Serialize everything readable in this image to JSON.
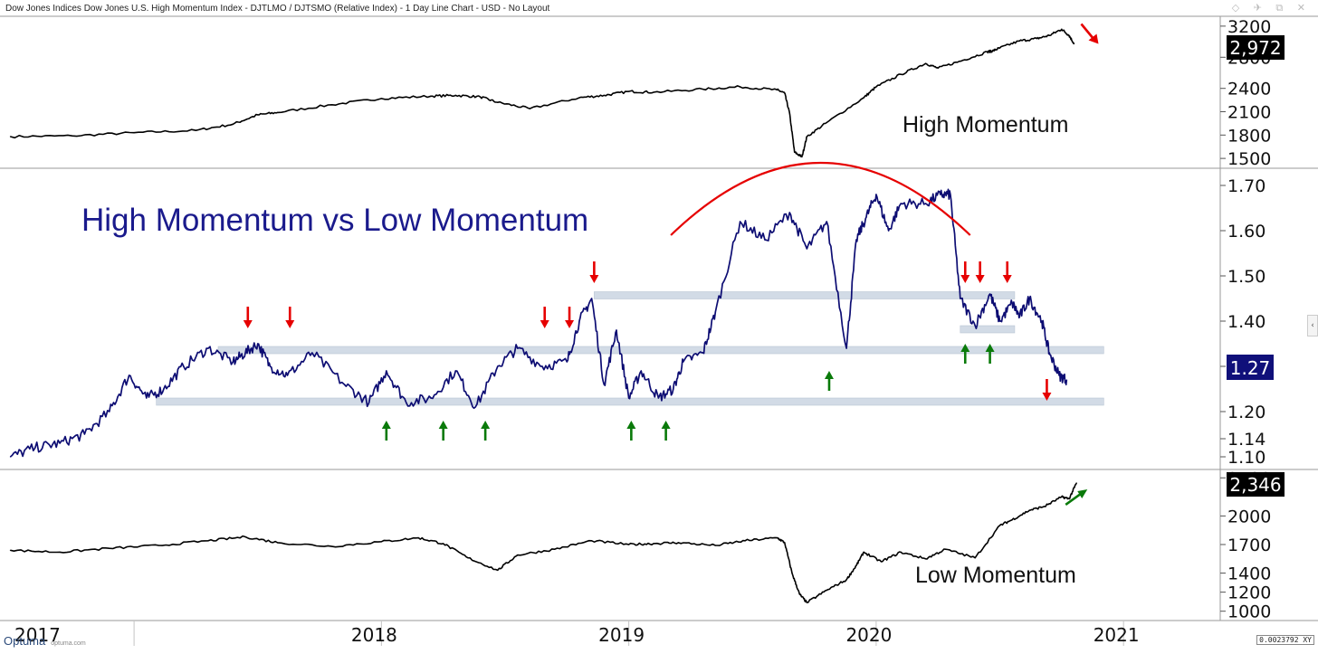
{
  "header": {
    "title": "Dow Jones Indices Dow Jones U.S. High Momentum Index  - DJTLMO / DJTSMO (Relative Index) - 1 Day Line Chart - USD - No Layout",
    "window_icons": "◇ ✈ ⧉ ✕"
  },
  "footer": {
    "brand": "Optuma",
    "brand_site": "optuma.com",
    "readout": "0.0023792",
    "readout_suffix": "XY"
  },
  "colors": {
    "price_line": "#000000",
    "ratio_line": "#0d0d73",
    "title_text": "#1a1a8c",
    "support_band": "#d2dbe6",
    "down_arrow": "#e60000",
    "up_arrow": "#0a7a0a",
    "arc": "#e60000",
    "last_tag_price": "#000000",
    "last_tag_ratio": "#10107a"
  },
  "chart_data": [
    {
      "type": "line",
      "panel": "top",
      "title": "High Momentum",
      "series": [
        {
          "name": "Dow Jones U.S. High Momentum Index (DJTLMO)",
          "x": [
            2017.0,
            2017.25,
            2017.5,
            2017.75,
            2017.9,
            2018.0,
            2018.08,
            2018.3,
            2018.5,
            2018.7,
            2018.8,
            2018.9,
            2018.97,
            2019.1,
            2019.3,
            2019.4,
            2019.5,
            2019.6,
            2019.8,
            2019.95,
            2020.1,
            2020.13,
            2020.15,
            2020.17,
            2020.2,
            2020.22,
            2020.3,
            2020.45,
            2020.5,
            2020.6,
            2020.7,
            2020.75,
            2020.85,
            2020.95,
            2020.97,
            2021.0,
            2021.08,
            2021.15,
            2021.2,
            2021.25,
            2021.28,
            2021.3
          ],
          "values": [
            1780,
            1790,
            1830,
            1860,
            1940,
            2060,
            2090,
            2190,
            2270,
            2300,
            2310,
            2290,
            2220,
            2140,
            2280,
            2310,
            2360,
            2350,
            2390,
            2420,
            2380,
            2340,
            2080,
            1580,
            1520,
            1780,
            1960,
            2280,
            2420,
            2580,
            2720,
            2660,
            2760,
            2870,
            2880,
            2920,
            3010,
            3040,
            3080,
            3160,
            3080,
            2972
          ]
        }
      ],
      "ylim": [
        1420,
        3280
      ],
      "y_ticks": [
        1500,
        1800,
        2100,
        2400,
        2800,
        3200
      ],
      "y_tick_labels": [
        "1500",
        "1800",
        "2100",
        "2400",
        "2800",
        "3200"
      ],
      "last_value": "2,972",
      "trend_arrow": "down"
    },
    {
      "type": "line",
      "panel": "middle",
      "title": "High Momentum vs Low Momentum",
      "series": [
        {
          "name": "DJTLMO / DJTSMO (Relative Index)",
          "x": [
            2017.0,
            2017.1,
            2017.2,
            2017.3,
            2017.4,
            2017.48,
            2017.55,
            2017.62,
            2017.7,
            2017.8,
            2017.9,
            2017.95,
            2018.0,
            2018.05,
            2018.12,
            2018.22,
            2018.35,
            2018.45,
            2018.52,
            2018.6,
            2018.7,
            2018.8,
            2018.88,
            2018.97,
            2019.05,
            2019.15,
            2019.25,
            2019.3,
            2019.35,
            2019.4,
            2019.45,
            2019.5,
            2019.55,
            2019.62,
            2019.68,
            2019.72,
            2019.8,
            2019.85,
            2019.95,
            2020.05,
            2020.15,
            2020.22,
            2020.3,
            2020.38,
            2020.42,
            2020.46,
            2020.5,
            2020.55,
            2020.6,
            2020.7,
            2020.76,
            2020.8,
            2020.84,
            2020.9,
            2020.96,
            2021.0,
            2021.05,
            2021.08,
            2021.12,
            2021.17,
            2021.2,
            2021.24,
            2021.27
          ],
          "values": [
            1.1,
            1.12,
            1.13,
            1.15,
            1.2,
            1.28,
            1.23,
            1.25,
            1.3,
            1.34,
            1.31,
            1.33,
            1.35,
            1.3,
            1.28,
            1.33,
            1.26,
            1.22,
            1.29,
            1.22,
            1.23,
            1.29,
            1.21,
            1.3,
            1.34,
            1.3,
            1.31,
            1.4,
            1.45,
            1.26,
            1.38,
            1.23,
            1.29,
            1.23,
            1.25,
            1.31,
            1.33,
            1.42,
            1.62,
            1.58,
            1.64,
            1.56,
            1.62,
            1.34,
            1.58,
            1.63,
            1.68,
            1.6,
            1.66,
            1.66,
            1.68,
            1.68,
            1.45,
            1.39,
            1.46,
            1.4,
            1.44,
            1.41,
            1.45,
            1.4,
            1.33,
            1.28,
            1.27
          ]
        }
      ],
      "ylim": [
        1.08,
        1.73
      ],
      "y_ticks": [
        1.1,
        1.14,
        1.2,
        1.3,
        1.4,
        1.5,
        1.6,
        1.7
      ],
      "y_tick_labels": [
        "1.10",
        "1.14",
        "1.20",
        "1.30",
        "1.40",
        "1.50",
        "1.60",
        "1.70"
      ],
      "last_value": "1.27",
      "support_levels": [
        {
          "value": 1.222,
          "x_start": 2017.59,
          "x_end": 2021.42
        },
        {
          "value": 1.336,
          "x_start": 2017.84,
          "x_end": 2021.42
        },
        {
          "value": 1.382,
          "x_start": 2020.84,
          "x_end": 2021.06
        },
        {
          "value": 1.457,
          "x_start": 2019.36,
          "x_end": 2021.06
        }
      ],
      "annotations": {
        "resistance_arc": {
          "x_start": 2019.67,
          "x_end": 2020.88,
          "peak_value": 1.75
        },
        "down_arrows": [
          {
            "x": 2017.96,
            "value": 1.38
          },
          {
            "x": 2018.13,
            "value": 1.38
          },
          {
            "x": 2019.16,
            "value": 1.38
          },
          {
            "x": 2019.26,
            "value": 1.38
          },
          {
            "x": 2019.36,
            "value": 1.48
          },
          {
            "x": 2020.86,
            "value": 1.48
          },
          {
            "x": 2020.92,
            "value": 1.48
          },
          {
            "x": 2021.03,
            "value": 1.48
          },
          {
            "x": 2021.19,
            "value": 1.22
          }
        ],
        "up_arrows": [
          {
            "x": 2018.52,
            "value": 1.18
          },
          {
            "x": 2018.75,
            "value": 1.18
          },
          {
            "x": 2018.92,
            "value": 1.18
          },
          {
            "x": 2019.51,
            "value": 1.18
          },
          {
            "x": 2019.65,
            "value": 1.18
          },
          {
            "x": 2020.31,
            "value": 1.29
          },
          {
            "x": 2020.86,
            "value": 1.35
          },
          {
            "x": 2020.96,
            "value": 1.35
          }
        ]
      }
    },
    {
      "type": "line",
      "panel": "bottom",
      "title": "Low Momentum",
      "series": [
        {
          "name": "Dow Jones U.S. Low Momentum Index (DJTSMO)",
          "x": [
            2017.0,
            2017.2,
            2017.4,
            2017.6,
            2017.8,
            2017.95,
            2018.08,
            2018.3,
            2018.5,
            2018.65,
            2018.75,
            2018.85,
            2018.97,
            2019.05,
            2019.2,
            2019.35,
            2019.5,
            2019.6,
            2019.7,
            2019.85,
            2019.97,
            2020.1,
            2020.13,
            2020.16,
            2020.19,
            2020.22,
            2020.3,
            2020.38,
            2020.42,
            2020.45,
            2020.52,
            2020.6,
            2020.7,
            2020.78,
            2020.9,
            2021.0,
            2021.05,
            2021.12,
            2021.18,
            2021.25,
            2021.28,
            2021.31
          ],
          "values": [
            1640,
            1620,
            1660,
            1690,
            1740,
            1780,
            1720,
            1680,
            1730,
            1770,
            1710,
            1560,
            1430,
            1590,
            1650,
            1740,
            1700,
            1710,
            1720,
            1690,
            1740,
            1770,
            1720,
            1400,
            1180,
            1090,
            1220,
            1330,
            1480,
            1620,
            1520,
            1620,
            1550,
            1650,
            1560,
            1900,
            1960,
            2060,
            2100,
            2200,
            2180,
            2346
          ]
        }
      ],
      "ylim": [
        940,
        2450
      ],
      "y_ticks": [
        1000,
        1200,
        1400,
        1700,
        2000,
        2400
      ],
      "y_tick_labels": [
        "1000",
        "1200",
        "1400",
        "1700",
        "2000",
        "2400"
      ],
      "last_value": "2,346",
      "trend_arrow": "up"
    }
  ],
  "time_axis": {
    "x_start": 2016.98,
    "x_end": 2021.88,
    "labels": [
      {
        "text": "2017",
        "x": 2017.0
      },
      {
        "text": "2018",
        "x": 2018.0
      },
      {
        "text": "2019",
        "x": 2019.0
      },
      {
        "text": "2020",
        "x": 2020.0
      },
      {
        "text": "2021",
        "x": 2021.0
      }
    ],
    "dividers": [
      2017.5,
      2018.5,
      2019.5,
      2020.5,
      2021.5
    ]
  }
}
